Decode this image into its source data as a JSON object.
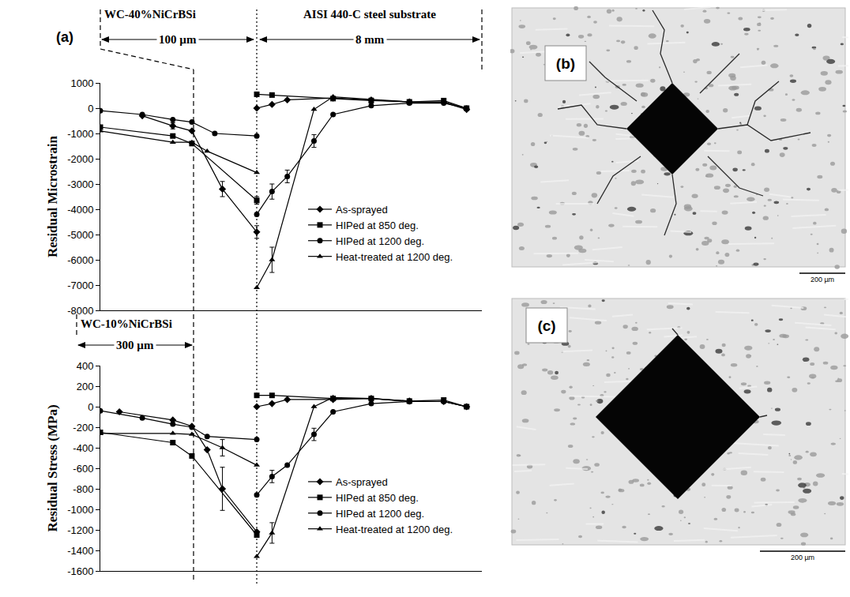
{
  "panel_a": {
    "label": "(a)",
    "top_coating": "WC-40%NiCrBSi",
    "top_coating_thickness": "100 µm",
    "substrate": "AISI 440-C steel substrate",
    "substrate_thickness": "8 mm",
    "bottom_coating": "WC-10%NiCrBSi",
    "bottom_coating_thickness": "300 µm"
  },
  "chart_data": [
    {
      "type": "line",
      "y_label": "Residual Microstrain",
      "xlim": [
        0,
        100
      ],
      "ylim": [
        -8000,
        1000
      ],
      "yticks": [
        -8000,
        -7000,
        -6000,
        -5000,
        -4000,
        -3000,
        -2000,
        -1000,
        0,
        1000
      ],
      "tick_labels": "y",
      "grid": false,
      "legend": "lower right",
      "series": [
        {
          "name": "As-sprayed",
          "color": "#000000",
          "marker": "diamond",
          "x": [
            11,
            19,
            24,
            32,
            41,
            41,
            41,
            45,
            49,
            61,
            71,
            81,
            90,
            96
          ],
          "values": [
            -300,
            -700,
            -900,
            -3200,
            -4900,
            null,
            0,
            150,
            330,
            400,
            320,
            250,
            230,
            -50
          ],
          "errors": [
            null,
            120,
            null,
            300,
            250,
            null,
            null,
            null,
            null,
            null,
            80,
            null,
            null,
            null
          ]
        },
        {
          "name": "HIPed at 850 deg.",
          "color": "#000000",
          "marker": "square",
          "x": [
            0,
            19,
            24,
            41,
            41,
            41,
            45,
            61,
            71,
            81,
            90,
            96
          ],
          "values": [
            -750,
            -1100,
            -1400,
            -3650,
            null,
            550,
            520,
            380,
            300,
            250,
            300,
            0
          ],
          "errors": [
            null,
            null,
            null,
            150,
            null,
            null,
            null,
            null,
            null,
            null,
            null,
            null
          ]
        },
        {
          "name": "HIPed at 1200 deg.",
          "color": "#000000",
          "marker": "circle",
          "x": [
            0,
            11,
            19,
            24,
            30,
            41,
            41,
            41,
            45,
            49,
            56,
            61,
            71,
            81,
            90,
            96
          ],
          "values": [
            -100,
            -250,
            -450,
            -550,
            -1000,
            -1100,
            null,
            -4200,
            -3300,
            -2700,
            -1300,
            -250,
            100,
            200,
            200,
            0
          ],
          "errors": [
            null,
            null,
            null,
            null,
            null,
            null,
            null,
            null,
            300,
            250,
            250,
            null,
            null,
            null,
            null,
            null
          ]
        },
        {
          "name": "Heat-treated at 1200 deg.",
          "color": "#000000",
          "marker": "triangle",
          "x": [
            0,
            19,
            24,
            28,
            41,
            41,
            41,
            45,
            56,
            61,
            71,
            81,
            90,
            96
          ],
          "values": [
            -900,
            -1350,
            -1350,
            -1700,
            -2550,
            null,
            -7100,
            -6000,
            -50,
            450,
            350,
            250,
            250,
            0
          ],
          "errors": [
            null,
            null,
            null,
            null,
            null,
            null,
            null,
            500,
            null,
            null,
            null,
            null,
            null,
            null
          ]
        }
      ]
    },
    {
      "type": "line",
      "y_label": "Residual Stress (MPa)",
      "xlim": [
        0,
        100
      ],
      "ylim": [
        -1600,
        400
      ],
      "yticks": [
        -1600,
        -1400,
        -1200,
        -1000,
        -800,
        -600,
        -400,
        -200,
        0,
        200,
        400
      ],
      "tick_labels": "y",
      "grid": false,
      "legend": "lower right",
      "series": [
        {
          "name": "As-sprayed",
          "color": "#000000",
          "marker": "diamond",
          "x": [
            5,
            19,
            24,
            28,
            32,
            41,
            41,
            41,
            45,
            49,
            61,
            71,
            81,
            90,
            96
          ],
          "values": [
            -50,
            -130,
            -190,
            -420,
            -800,
            -1220,
            null,
            0,
            30,
            70,
            70,
            80,
            55,
            50,
            0
          ],
          "errors": [
            null,
            null,
            null,
            null,
            210,
            null,
            null,
            null,
            null,
            null,
            null,
            null,
            null,
            null,
            null
          ]
        },
        {
          "name": "HIPed at 850 deg.",
          "color": "#000000",
          "marker": "square",
          "x": [
            0,
            19,
            24,
            41,
            41,
            41,
            45,
            61,
            71,
            81,
            90,
            96
          ],
          "values": [
            -250,
            -350,
            -480,
            -1250,
            null,
            110,
            110,
            80,
            80,
            55,
            65,
            0
          ]
        },
        {
          "name": "HIPed at 1200 deg.",
          "color": "#000000",
          "marker": "circle",
          "x": [
            0,
            11,
            19,
            24,
            28,
            41,
            41,
            41,
            45,
            49,
            56,
            61,
            71,
            81,
            90,
            96
          ],
          "values": [
            -40,
            -110,
            -170,
            -200,
            -290,
            -320,
            null,
            -860,
            -680,
            -570,
            -270,
            -50,
            30,
            50,
            50,
            0
          ],
          "errors": [
            null,
            null,
            null,
            null,
            null,
            null,
            null,
            null,
            60,
            null,
            60,
            null,
            null,
            null,
            null,
            null
          ]
        },
        {
          "name": "Heat-treated at 1200 deg.",
          "color": "#000000",
          "marker": "triangle",
          "x": [
            0,
            19,
            24,
            32,
            41,
            41,
            41,
            45,
            56,
            61,
            71,
            81,
            90,
            96
          ],
          "values": [
            -260,
            -260,
            -270,
            -400,
            -570,
            null,
            -1460,
            -1230,
            0,
            90,
            80,
            50,
            50,
            0
          ],
          "errors": [
            null,
            null,
            null,
            80,
            null,
            null,
            null,
            100,
            null,
            null,
            null,
            null,
            null,
            null
          ]
        }
      ]
    }
  ],
  "micrographs": [
    {
      "label": "(b)",
      "scale_bar": "200 µm"
    },
    {
      "label": "(c)",
      "scale_bar": "200 µm"
    }
  ]
}
